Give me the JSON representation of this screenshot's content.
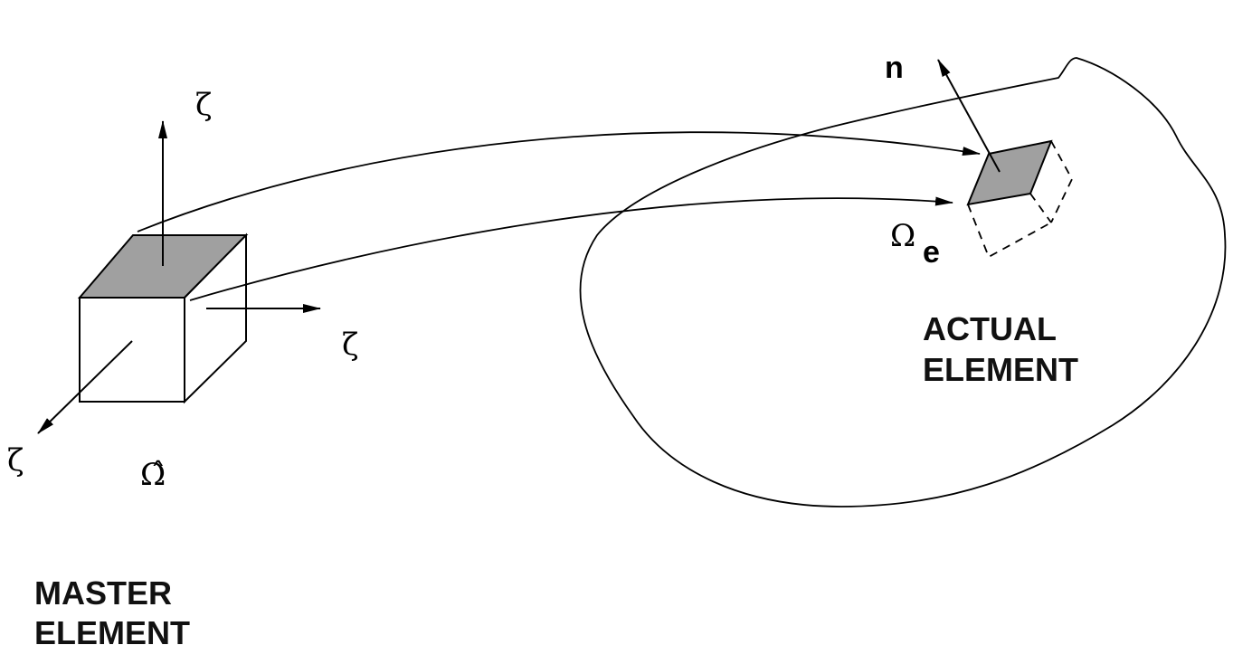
{
  "master": {
    "axis_up_label": "ζ",
    "axis_right_label": "ζ",
    "axis_diag_label": "ζ",
    "omega_hat_label": "Ω̂",
    "title_line1": "MASTER",
    "title_line2": "ELEMENT"
  },
  "actual": {
    "normal_label": "n",
    "omega_symbol": "Ω",
    "omega_subscript": "e",
    "title_line1": "ACTUAL",
    "title_line2": "ELEMENT"
  },
  "colors": {
    "face_fill": "#a0a0a0",
    "stroke": "#000000"
  }
}
